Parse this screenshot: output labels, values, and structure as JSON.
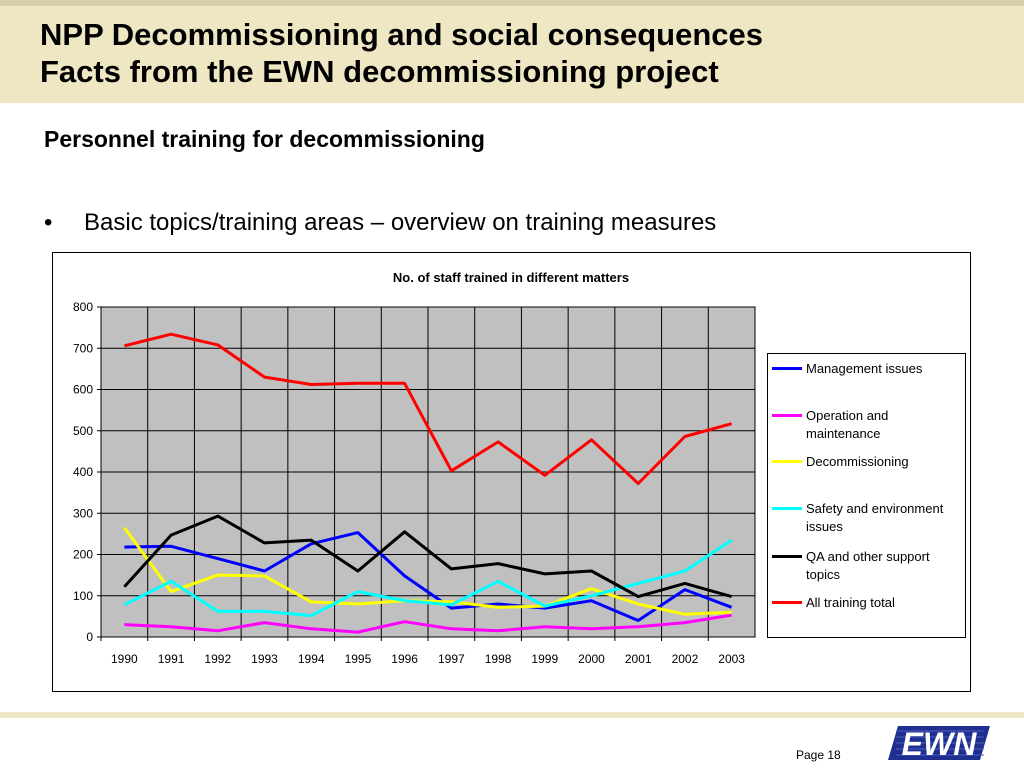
{
  "header": {
    "title_line1": "NPP Decommissioning and social consequences",
    "title_line2": "Facts from the EWN decommissioning project"
  },
  "section_title": "Personnel training for decommissioning",
  "bullet": {
    "symbol": "•",
    "text": "Basic topics/training areas – overview on training measures"
  },
  "footer": {
    "page": "Page 18",
    "logo_text": "EWN"
  },
  "colors": {
    "band": "#efe6c3",
    "plot_bg": "#c0c0c0",
    "logo": "#1f2f8f"
  },
  "chart_data": {
    "type": "line",
    "title": "No. of staff trained in different matters",
    "xlabel": "",
    "ylabel": "",
    "categories": [
      "1990",
      "1991",
      "1992",
      "1993",
      "1994",
      "1995",
      "1996",
      "1997",
      "1998",
      "1999",
      "2000",
      "2001",
      "2002",
      "2003"
    ],
    "ylim": [
      0,
      800
    ],
    "yticks": [
      0,
      100,
      200,
      300,
      400,
      500,
      600,
      700,
      800
    ],
    "grid": true,
    "legend_position": "right",
    "series": [
      {
        "name": "Management issues",
        "color": "#0000ff",
        "values": [
          218,
          220,
          190,
          160,
          226,
          253,
          148,
          70,
          80,
          70,
          88,
          40,
          115,
          72
        ]
      },
      {
        "name": "Operation and maintenance",
        "color": "#ff00ff",
        "values": [
          30,
          25,
          15,
          35,
          20,
          12,
          37,
          20,
          15,
          25,
          20,
          25,
          35,
          53
        ]
      },
      {
        "name": "Decommissioning",
        "color": "#ffff00",
        "values": [
          265,
          110,
          150,
          148,
          85,
          80,
          88,
          85,
          72,
          75,
          117,
          80,
          55,
          60
        ]
      },
      {
        "name": "Safety and environment issues",
        "color": "#00ffff",
        "values": [
          78,
          135,
          62,
          62,
          52,
          110,
          88,
          78,
          135,
          75,
          100,
          130,
          160,
          235
        ]
      },
      {
        "name": "QA and other support topics",
        "color": "#000000",
        "values": [
          122,
          247,
          293,
          228,
          235,
          160,
          255,
          165,
          178,
          153,
          160,
          98,
          130,
          98
        ]
      },
      {
        "name": "All training total",
        "color": "#ff0000",
        "values": [
          706,
          734,
          708,
          630,
          612,
          615,
          615,
          403,
          473,
          392,
          478,
          372,
          486,
          517
        ]
      }
    ]
  }
}
